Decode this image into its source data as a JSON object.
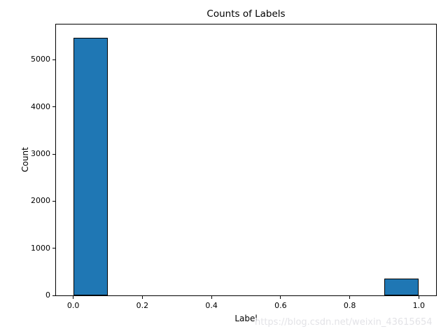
{
  "chart_data": {
    "type": "bar",
    "title": "Counts of Labels",
    "xlabel": "Label",
    "ylabel": "Count",
    "categories": [
      0,
      1
    ],
    "values": [
      5470,
      350
    ],
    "bars": [
      {
        "label": 0,
        "x_start": 0.0,
        "x_end": 0.1,
        "count": 5470
      },
      {
        "label": 1,
        "x_start": 0.9,
        "x_end": 1.0,
        "count": 350
      }
    ],
    "bar_color": "#1f77b4",
    "bar_edge_color": "#000000",
    "x_ticks": [
      "0.0",
      "0.2",
      "0.4",
      "0.6",
      "0.8",
      "1.0"
    ],
    "x_tick_values": [
      0.0,
      0.2,
      0.4,
      0.6,
      0.8,
      1.0
    ],
    "y_ticks": [
      "0",
      "1000",
      "2000",
      "3000",
      "4000",
      "5000"
    ],
    "y_tick_values": [
      0,
      1000,
      2000,
      3000,
      4000,
      5000
    ],
    "xlim": [
      -0.05,
      1.05
    ],
    "ylim": [
      0,
      5750
    ],
    "grid": false,
    "legend": null,
    "background_color": "#ffffff",
    "watermark": "https://blog.csdn.net/weixin_43615654"
  }
}
